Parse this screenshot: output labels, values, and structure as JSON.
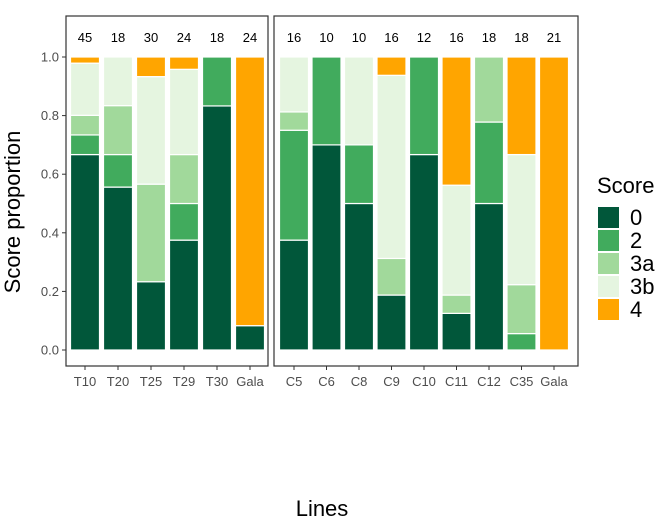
{
  "chart_data": {
    "type": "bar",
    "stacked": true,
    "ylabel": "Score proportion",
    "xlabel": "Lines",
    "ylim": [
      0,
      1
    ],
    "yticks": [
      "0.0",
      "0.2",
      "0.4",
      "0.6",
      "0.8",
      "1.0"
    ],
    "grid": false,
    "legend": {
      "title": "Score",
      "placement": "right",
      "entries": [
        {
          "label": "0",
          "color": "#01573a"
        },
        {
          "label": "2",
          "color": "#41ab5d"
        },
        {
          "label": "3a",
          "color": "#a1d99b"
        },
        {
          "label": "3b",
          "color": "#e5f5e0"
        },
        {
          "label": "4",
          "color": "#ffa500"
        }
      ]
    },
    "panels": [
      {
        "categories": [
          "T10",
          "T20",
          "T25",
          "T29",
          "T30",
          "Gala"
        ],
        "counts": [
          "45",
          "18",
          "30",
          "24",
          "18",
          "24"
        ],
        "series": [
          {
            "name": "0",
            "values": [
              0.667,
              0.556,
              0.233,
              0.375,
              0.833,
              0.083
            ]
          },
          {
            "name": "2",
            "values": [
              0.067,
              0.111,
              0.0,
              0.125,
              0.167,
              0.0
            ]
          },
          {
            "name": "3a",
            "values": [
              0.067,
              0.167,
              0.333,
              0.167,
              0.0,
              0.0
            ]
          },
          {
            "name": "3b",
            "values": [
              0.178,
              0.166,
              0.367,
              0.291,
              0.0,
              0.0
            ]
          },
          {
            "name": "4",
            "values": [
              0.021,
              0.0,
              0.067,
              0.042,
              0.0,
              0.917
            ]
          }
        ]
      },
      {
        "categories": [
          "C5",
          "C6",
          "C8",
          "C9",
          "C10",
          "C11",
          "C12",
          "C35",
          "Gala"
        ],
        "counts": [
          "16",
          "10",
          "10",
          "16",
          "12",
          "16",
          "18",
          "18",
          "21"
        ],
        "series": [
          {
            "name": "0",
            "values": [
              0.375,
              0.7,
              0.5,
              0.1875,
              0.667,
              0.125,
              0.5,
              0.0,
              0.0
            ]
          },
          {
            "name": "2",
            "values": [
              0.375,
              0.3,
              0.2,
              0.0,
              0.333,
              0.0,
              0.278,
              0.056,
              0.0
            ]
          },
          {
            "name": "3a",
            "values": [
              0.0625,
              0.0,
              0.0,
              0.125,
              0.0,
              0.0625,
              0.222,
              0.167,
              0.0
            ]
          },
          {
            "name": "3b",
            "values": [
              0.1875,
              0.0,
              0.3,
              0.625,
              0.0,
              0.375,
              0.0,
              0.444,
              0.0
            ]
          },
          {
            "name": "4",
            "values": [
              0.0,
              0.0,
              0.0,
              0.0625,
              0.0,
              0.4375,
              0.0,
              0.333,
              1.0
            ]
          }
        ]
      }
    ]
  }
}
